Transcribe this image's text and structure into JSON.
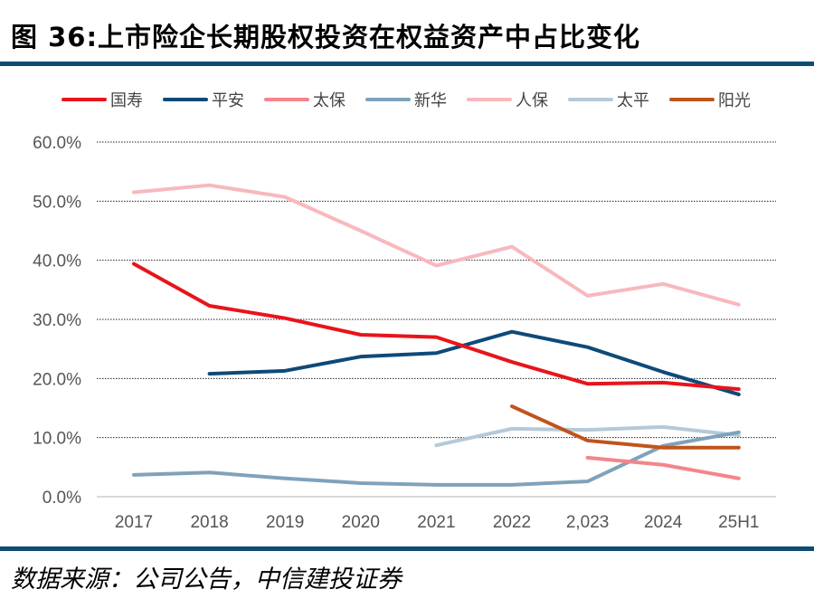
{
  "title": "图 36:上市险企长期股权投资在权益资产中占比变化",
  "source": "数据来源：公司公告，中信建投证券",
  "chart_data": {
    "type": "line",
    "categories": [
      "2017",
      "2018",
      "2019",
      "2020",
      "2021",
      "2022",
      "2,023",
      "2024",
      "25H1"
    ],
    "ylim": [
      0,
      60
    ],
    "yticks": [
      "0.0%",
      "10.0%",
      "20.0%",
      "30.0%",
      "40.0%",
      "50.0%",
      "60.0%"
    ],
    "grid": true,
    "legend": "top",
    "series": [
      {
        "name": "国寿",
        "color": "#e8141b",
        "values": [
          39.4,
          32.3,
          30.2,
          27.4,
          27.0,
          22.8,
          19.1,
          19.3,
          18.2
        ]
      },
      {
        "name": "平安",
        "color": "#0e4a78",
        "values": [
          null,
          20.8,
          21.3,
          23.7,
          24.3,
          27.9,
          25.3,
          21.1,
          17.3
        ]
      },
      {
        "name": "太保",
        "color": "#f4858a",
        "values": [
          null,
          null,
          null,
          null,
          null,
          null,
          6.6,
          5.4,
          3.1
        ]
      },
      {
        "name": "新华",
        "color": "#7fa2bb",
        "values": [
          3.7,
          4.1,
          3.1,
          2.3,
          2.0,
          2.0,
          2.6,
          8.6,
          10.9
        ]
      },
      {
        "name": "人保",
        "color": "#f8b8bd",
        "values": [
          51.5,
          52.7,
          50.7,
          45.0,
          39.1,
          42.3,
          34.0,
          36.0,
          32.5
        ]
      },
      {
        "name": "太平",
        "color": "#b5c9d8",
        "values": [
          null,
          null,
          null,
          null,
          8.7,
          11.5,
          11.3,
          11.8,
          10.4
        ]
      },
      {
        "name": "阳光",
        "color": "#c0541c",
        "values": [
          null,
          null,
          null,
          null,
          null,
          15.3,
          9.5,
          8.3,
          8.3
        ]
      }
    ]
  }
}
